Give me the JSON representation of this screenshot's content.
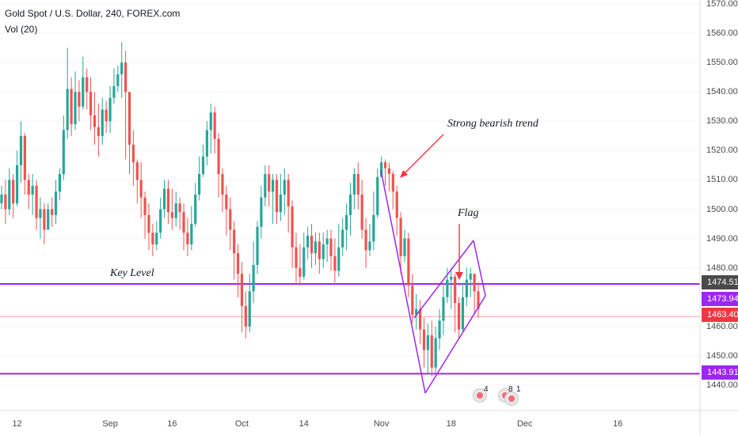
{
  "header": {
    "title": "Gold Spot / U.S. Dollar, 240, FOREX.com",
    "indicator": "Vol (20)"
  },
  "colors": {
    "up": "#26a69a",
    "down": "#ef5350",
    "key_level_line": "#9c27f0",
    "current_price_line": "#f5a3a0",
    "axis_line": "#dcdcdc"
  },
  "annotations": {
    "trend": "Strong bearish trend",
    "flag": "Flag",
    "key_level": "Key Level"
  },
  "price_tags": {
    "top": "1474.51",
    "key": "1473.94",
    "current": "1463.40",
    "low": "1443.91"
  },
  "events": {
    "count_a": "4",
    "count_b": "8",
    "count_c": "1"
  },
  "chart_data": {
    "type": "candlestick",
    "ylim": [
      1433,
      1572
    ],
    "y_ticks": [
      "1570.00",
      "1560.00",
      "1550.00",
      "1540.00",
      "1530.00",
      "1520.00",
      "1510.00",
      "1500.00",
      "1490.00",
      "1480.00",
      "1460.00",
      "1450.00",
      "1440.00"
    ],
    "y_tick_values": [
      1570,
      1560,
      1550,
      1540,
      1530,
      1520,
      1510,
      1500,
      1490,
      1480,
      1460,
      1450,
      1440
    ],
    "x_ticks": [
      "12",
      "Sep",
      "16",
      "Oct",
      "14",
      "Nov",
      "18",
      "Dec",
      "16"
    ],
    "x_tick_index": [
      4,
      28,
      44,
      62,
      78,
      98,
      116,
      135,
      159
    ],
    "horizontal_lines": {
      "key_level_upper": 1474.51,
      "key_level": 1473.94,
      "current_price": 1463.4,
      "support": 1443.91
    },
    "closes": [
      1505,
      1500,
      1510,
      1502,
      1515,
      1525,
      1510,
      1505,
      1508,
      1497,
      1500,
      1493,
      1500,
      1498,
      1506,
      1512,
      1527,
      1541,
      1529,
      1540,
      1535,
      1545,
      1540,
      1532,
      1528,
      1525,
      1534,
      1530,
      1538,
      1542,
      1546,
      1550,
      1540,
      1522,
      1516,
      1510,
      1504,
      1498,
      1492,
      1488,
      1492,
      1500,
      1507,
      1499,
      1497,
      1502,
      1499,
      1492,
      1488,
      1495,
      1505,
      1512,
      1518,
      1527,
      1533,
      1524,
      1512,
      1505,
      1500,
      1493,
      1485,
      1478,
      1467,
      1460,
      1472,
      1481,
      1494,
      1504,
      1512,
      1506,
      1510,
      1499,
      1505,
      1510,
      1501,
      1487,
      1480,
      1477,
      1487,
      1491,
      1485,
      1489,
      1483,
      1488,
      1490,
      1484,
      1479,
      1487,
      1493,
      1498,
      1505,
      1512,
      1505,
      1493,
      1486,
      1489,
      1498,
      1511,
      1516,
      1514,
      1512,
      1506,
      1497,
      1484,
      1490,
      1474,
      1464,
      1466,
      1459,
      1452,
      1457,
      1446,
      1456,
      1462,
      1470,
      1476,
      1477,
      1468,
      1459,
      1470,
      1476,
      1478,
      1472,
      1466
    ],
    "highs": [
      1508,
      1510,
      1514,
      1512,
      1520,
      1530,
      1526,
      1512,
      1512,
      1510,
      1504,
      1502,
      1502,
      1504,
      1510,
      1514,
      1532,
      1555,
      1545,
      1547,
      1544,
      1552,
      1548,
      1545,
      1540,
      1536,
      1538,
      1537,
      1542,
      1548,
      1549,
      1557,
      1554,
      1540,
      1527,
      1517,
      1516,
      1506,
      1502,
      1495,
      1496,
      1504,
      1510,
      1510,
      1507,
      1506,
      1504,
      1502,
      1497,
      1501,
      1509,
      1518,
      1522,
      1530,
      1536,
      1535,
      1526,
      1514,
      1508,
      1504,
      1496,
      1488,
      1482,
      1472,
      1478,
      1489,
      1496,
      1508,
      1515,
      1515,
      1512,
      1512,
      1512,
      1514,
      1512,
      1503,
      1492,
      1488,
      1492,
      1494,
      1495,
      1492,
      1492,
      1492,
      1493,
      1493,
      1490,
      1495,
      1497,
      1502,
      1509,
      1514,
      1516,
      1510,
      1497,
      1495,
      1506,
      1514,
      1518,
      1517,
      1516,
      1513,
      1508,
      1499,
      1493,
      1492,
      1478,
      1471,
      1469,
      1463,
      1461,
      1462,
      1460,
      1466,
      1474,
      1480,
      1480,
      1478,
      1470,
      1475,
      1480,
      1480,
      1478,
      1475
    ],
    "lows": [
      1500,
      1495,
      1498,
      1497,
      1501,
      1509,
      1505,
      1500,
      1498,
      1493,
      1490,
      1488,
      1493,
      1494,
      1495,
      1503,
      1510,
      1524,
      1525,
      1527,
      1530,
      1534,
      1534,
      1527,
      1522,
      1518,
      1522,
      1526,
      1526,
      1536,
      1540,
      1538,
      1517,
      1512,
      1508,
      1502,
      1497,
      1490,
      1486,
      1484,
      1486,
      1490,
      1497,
      1495,
      1493,
      1494,
      1493,
      1486,
      1484,
      1486,
      1494,
      1503,
      1511,
      1515,
      1519,
      1519,
      1504,
      1499,
      1491,
      1486,
      1476,
      1470,
      1458,
      1456,
      1458,
      1468,
      1478,
      1490,
      1501,
      1501,
      1495,
      1495,
      1496,
      1498,
      1492,
      1480,
      1475,
      1474,
      1476,
      1483,
      1480,
      1481,
      1478,
      1480,
      1482,
      1479,
      1475,
      1477,
      1484,
      1486,
      1491,
      1500,
      1500,
      1490,
      1480,
      1484,
      1486,
      1497,
      1511,
      1508,
      1506,
      1500,
      1491,
      1478,
      1482,
      1470,
      1461,
      1459,
      1454,
      1446,
      1444,
      1443,
      1444,
      1452,
      1457,
      1468,
      1466,
      1458,
      1456,
      1458,
      1467,
      1470,
      1464,
      1463
    ]
  }
}
